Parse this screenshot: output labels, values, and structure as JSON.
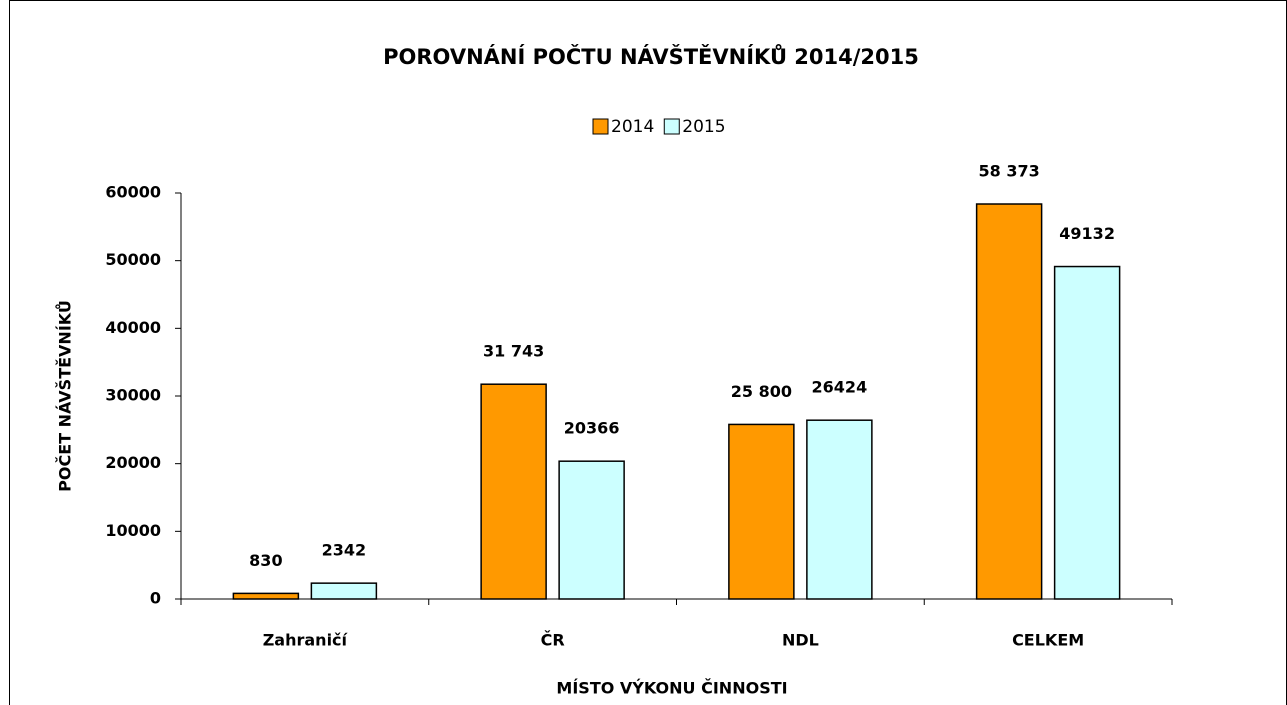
{
  "chart_data": {
    "type": "bar",
    "title": "POROVNÁNÍ POČTU NÁVŠTĚVNÍKŮ 2014/2015",
    "xlabel": "MÍSTO VÝKONU ČINNOSTI",
    "ylabel": "POČET NÁVŠTĚVNÍKŮ",
    "categories": [
      "Zahraničí",
      "ČR",
      "NDL",
      "CELKEM"
    ],
    "series": [
      {
        "name": "2014",
        "color": "#ff9900",
        "values": [
          830,
          31743,
          25800,
          58373
        ],
        "value_labels": [
          "830",
          "31 743",
          "25 800",
          "58 373"
        ]
      },
      {
        "name": "2015",
        "color": "#ccffff",
        "values": [
          2342,
          20366,
          26424,
          49132
        ]
      }
    ],
    "ylim": [
      0,
      60000
    ],
    "yticks": [
      0,
      10000,
      20000,
      30000,
      40000,
      50000,
      60000
    ],
    "legend": "top"
  }
}
